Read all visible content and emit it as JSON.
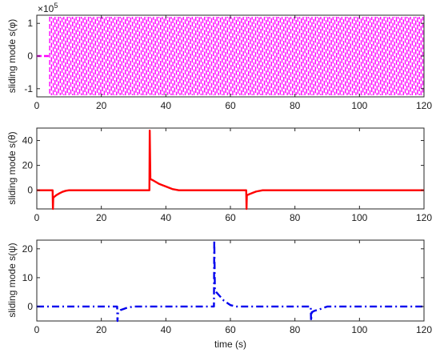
{
  "chart_data": [
    {
      "type": "line",
      "ylabel": "sliding mode s(φ)",
      "xlabel": "",
      "xlim": [
        0,
        120
      ],
      "ylim": [
        -1.25,
        1.25
      ],
      "exponent_label": "×10",
      "exponent_power": "5",
      "x_ticks": [
        "0",
        "20",
        "40",
        "60",
        "80",
        "100",
        "120"
      ],
      "y_ticks": [
        "-1",
        "0",
        "1"
      ],
      "grid": false,
      "series": [
        {
          "color": "#ff00ff",
          "style": "dash",
          "behavior": "high-frequency chattering after t≈4",
          "onset_x": 4,
          "x": [
            0,
            4
          ],
          "y": [
            0,
            0
          ],
          "band": [
            -1.2,
            1.2
          ]
        }
      ]
    },
    {
      "type": "line",
      "ylabel": "sliding mode s(θ)",
      "xlabel": "",
      "xlim": [
        0,
        120
      ],
      "ylim": [
        -15,
        50
      ],
      "x_ticks": [
        "0",
        "20",
        "40",
        "60",
        "80",
        "100",
        "120"
      ],
      "y_ticks": [
        "0",
        "20",
        "40"
      ],
      "grid": false,
      "series": [
        {
          "color": "#ff0000",
          "style": "solid",
          "x": [
            0,
            4.9,
            5,
            5.1,
            6,
            7,
            8,
            9,
            10,
            34.9,
            35,
            35.2,
            36,
            38,
            40,
            42,
            44,
            64.9,
            65,
            65.1,
            66,
            67,
            68,
            70,
            120
          ],
          "y": [
            0,
            0,
            -15,
            -6,
            -4,
            -2.5,
            -1.2,
            -0.4,
            0,
            0,
            48,
            9,
            8,
            5,
            3,
            1,
            0,
            0,
            -15,
            -4,
            -3,
            -2,
            -1,
            0,
            0
          ]
        }
      ]
    },
    {
      "type": "line",
      "ylabel": "sliding mode s(ψ)",
      "xlabel": "time (s)",
      "xlim": [
        0,
        120
      ],
      "ylim": [
        -5,
        23
      ],
      "x_ticks": [
        "0",
        "20",
        "40",
        "60",
        "80",
        "100",
        "120"
      ],
      "y_ticks": [
        "0",
        "10",
        "20"
      ],
      "grid": false,
      "series": [
        {
          "color": "#0000ee",
          "style": "dashdot",
          "x": [
            0,
            24.9,
            25,
            25.2,
            26,
            27,
            28,
            30,
            54.9,
            55,
            55.2,
            56,
            58,
            60,
            62,
            84.9,
            85,
            85.2,
            86,
            88,
            90,
            120
          ],
          "y": [
            0,
            0,
            -5,
            -2,
            -1.2,
            -0.8,
            -0.4,
            0,
            0,
            23,
            5.5,
            4.5,
            2,
            0.5,
            0,
            0,
            -5,
            -2,
            -1.5,
            -0.8,
            0,
            0
          ]
        }
      ]
    }
  ]
}
